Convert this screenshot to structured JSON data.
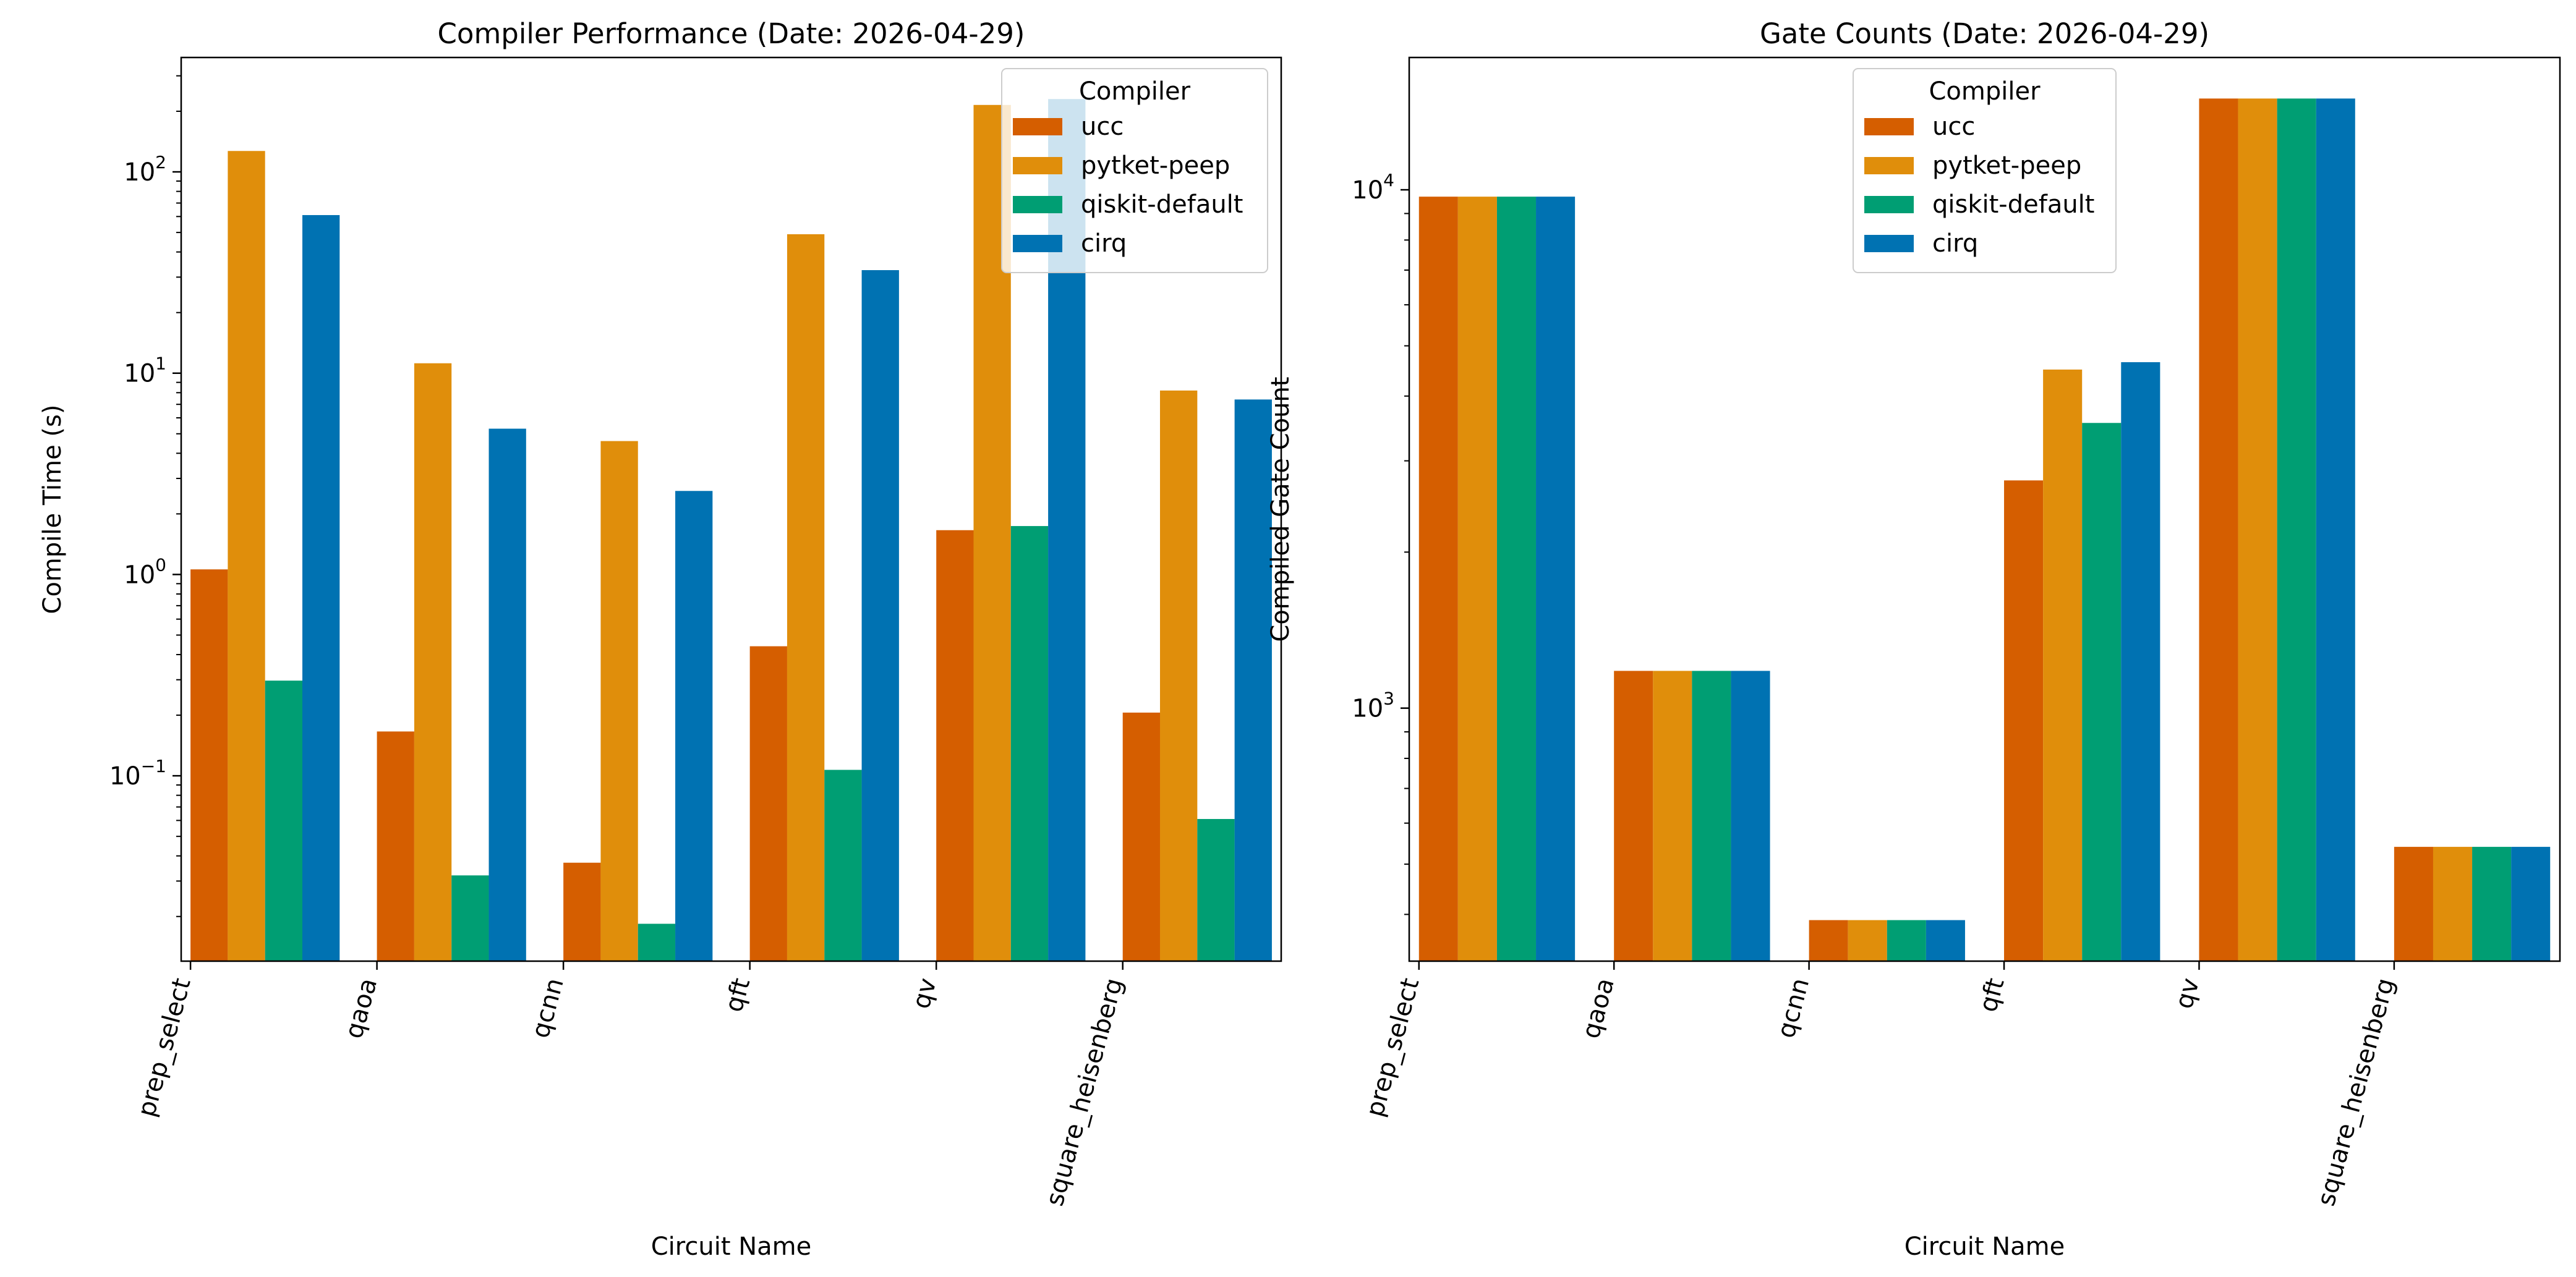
{
  "chart_data": [
    {
      "type": "bar",
      "title": "Compiler Performance (Date: 2026-04-29)",
      "xlabel": "Circuit Name",
      "ylabel": "Compile Time (s)",
      "yscale": "log",
      "ylim": [
        0.012,
        370
      ],
      "yticks": [
        {
          "base": "10",
          "exp": "−1",
          "value": 0.1
        },
        {
          "base": "10",
          "exp": "0",
          "value": 1
        },
        {
          "base": "10",
          "exp": "1",
          "value": 10
        },
        {
          "base": "10",
          "exp": "2",
          "value": 100
        }
      ],
      "categories": [
        "prep_select",
        "qaoa",
        "qcnn",
        "qft",
        "qv",
        "square_heisenberg"
      ],
      "legend": {
        "title": "Compiler",
        "position": "top-right"
      },
      "series": [
        {
          "name": "ucc",
          "color": "#d55e00",
          "values": [
            1.06,
            0.166,
            0.037,
            0.44,
            1.66,
            0.206
          ]
        },
        {
          "name": "pytket-peep",
          "color": "#e08e0b",
          "values": [
            127,
            11.2,
            4.6,
            49,
            215,
            8.2
          ]
        },
        {
          "name": "qiskit-default",
          "color": "#009e73",
          "values": [
            0.297,
            0.032,
            0.0184,
            0.107,
            1.74,
            0.061
          ]
        },
        {
          "name": "cirq",
          "color": "#0072b2",
          "values": [
            61,
            5.3,
            2.6,
            32.5,
            230,
            7.4
          ]
        }
      ]
    },
    {
      "type": "bar",
      "title": "Gate Counts (Date: 2026-04-29)",
      "xlabel": "Circuit Name",
      "ylabel": "Compiled Gate Count",
      "yscale": "log",
      "ylim": [
        325,
        18000
      ],
      "yticks": [
        {
          "base": "10",
          "exp": "3",
          "value": 1000
        },
        {
          "base": "10",
          "exp": "4",
          "value": 10000
        }
      ],
      "categories": [
        "prep_select",
        "qaoa",
        "qcnn",
        "qft",
        "qv",
        "square_heisenberg"
      ],
      "legend": {
        "title": "Compiler",
        "position": "top-center"
      },
      "series": [
        {
          "name": "ucc",
          "color": "#d55e00",
          "values": [
            9700,
            1180,
            390,
            2750,
            15000,
            540
          ]
        },
        {
          "name": "pytket-peep",
          "color": "#e08e0b",
          "values": [
            9700,
            1180,
            390,
            4500,
            15000,
            540
          ]
        },
        {
          "name": "qiskit-default",
          "color": "#009e73",
          "values": [
            9700,
            1180,
            390,
            3550,
            15000,
            540
          ]
        },
        {
          "name": "cirq",
          "color": "#0072b2",
          "values": [
            9700,
            1180,
            390,
            4650,
            15000,
            540
          ]
        }
      ]
    }
  ]
}
